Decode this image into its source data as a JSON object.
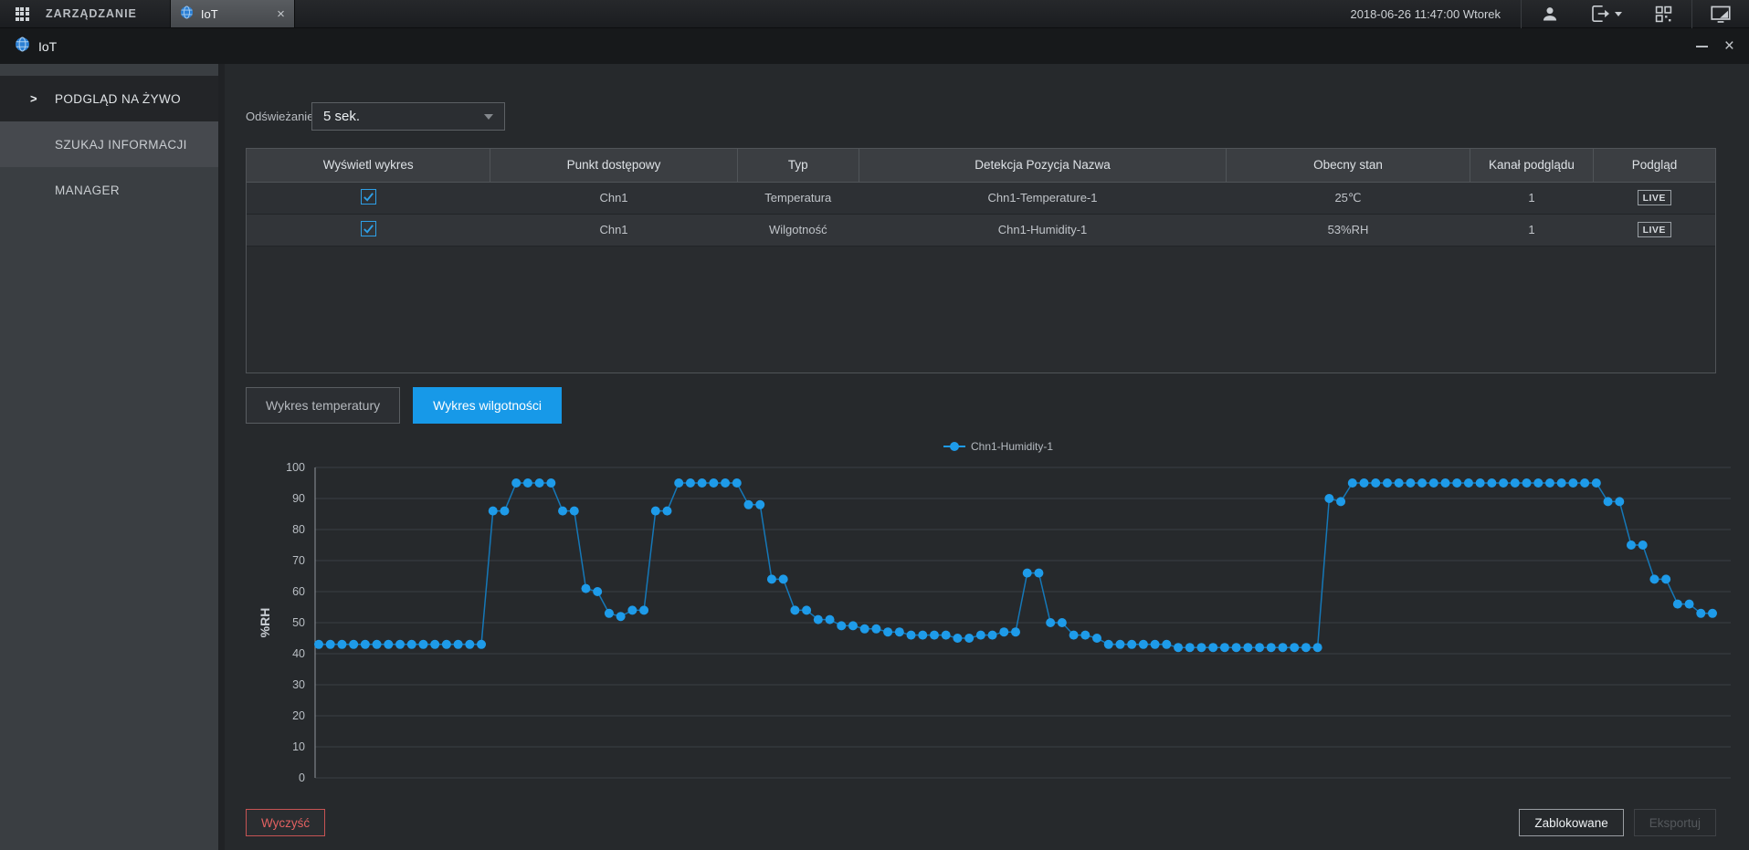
{
  "topbar": {
    "menu_title": "ZARZĄDZANIE",
    "tab": {
      "label": "IoT",
      "close_glyph": "×"
    },
    "datetime": "2018-06-26 11:47:00 Wtorek",
    "icons": [
      "apps-grid-icon",
      "globe-icon",
      "user-icon",
      "logout-icon",
      "qr-code-icon",
      "monitor-icon"
    ]
  },
  "window": {
    "title": "IoT",
    "minimize_glyph": "—",
    "close_glyph": "×"
  },
  "sidebar": {
    "items": [
      {
        "label": "PODGLĄD NA ŻYWO",
        "active": true
      },
      {
        "label": "SZUKAJ INFORMACJI",
        "active": false
      },
      {
        "label": "MANAGER",
        "active": false
      }
    ]
  },
  "main": {
    "refresh": {
      "label": "Odświeżanie",
      "value": "5 sek."
    },
    "table": {
      "columns": [
        "Wyświetl wykres",
        "Punkt dostępowy",
        "Typ",
        "Detekcja Pozycja Nazwa",
        "Obecny stan",
        "Kanał podglądu",
        "Podgląd"
      ],
      "rows": [
        {
          "checked": true,
          "access_point": "Chn1",
          "type": "Temperatura",
          "detect_name": "Chn1-Temperature-1",
          "current_state": "25℃",
          "preview_channel": "1",
          "preview": "LIVE"
        },
        {
          "checked": true,
          "access_point": "Chn1",
          "type": "Wilgotność",
          "detect_name": "Chn1-Humidity-1",
          "current_state": "53%RH",
          "preview_channel": "1",
          "preview": "LIVE"
        }
      ]
    },
    "chart_tabs": [
      {
        "label": "Wykres temperatury",
        "active": false
      },
      {
        "label": "Wykres wilgotności",
        "active": true
      }
    ],
    "buttons": {
      "clear": "Wyczyść",
      "locked": "Zablokowane",
      "export": "Eksportuj",
      "export_disabled": true
    }
  },
  "chart_data": {
    "type": "line",
    "title": "",
    "legend": [
      "Chn1-Humidity-1"
    ],
    "legend_position": "top-center",
    "xlabel": "",
    "ylabel": "%RH",
    "ylim": [
      0,
      100
    ],
    "ytick_step": 10,
    "grid": true,
    "marker": "circle",
    "series": [
      {
        "name": "Chn1-Humidity-1",
        "color": "#1E9BE9",
        "line_color": "#1578B8",
        "values": [
          43,
          43,
          43,
          43,
          43,
          43,
          43,
          43,
          43,
          43,
          43,
          43,
          43,
          43,
          43,
          86,
          86,
          95,
          95,
          95,
          95,
          86,
          86,
          61,
          60,
          53,
          52,
          54,
          54,
          86,
          86,
          95,
          95,
          95,
          95,
          95,
          95,
          88,
          88,
          64,
          64,
          54,
          54,
          51,
          51,
          49,
          49,
          48,
          48,
          47,
          47,
          46,
          46,
          46,
          46,
          45,
          45,
          46,
          46,
          47,
          47,
          66,
          66,
          50,
          50,
          46,
          46,
          45,
          43,
          43,
          43,
          43,
          43,
          43,
          42,
          42,
          42,
          42,
          42,
          42,
          42,
          42,
          42,
          42,
          42,
          42,
          42,
          90,
          89,
          95,
          95,
          95,
          95,
          95,
          95,
          95,
          95,
          95,
          95,
          95,
          95,
          95,
          95,
          95,
          95,
          95,
          95,
          95,
          95,
          95,
          95,
          89,
          89,
          75,
          75,
          64,
          64,
          56,
          56,
          53,
          53
        ]
      }
    ]
  },
  "colors": {
    "accent": "#1799E8",
    "point": "#1E9BE9",
    "danger": "#E05A5A",
    "live_border": "#9AA0A5"
  }
}
